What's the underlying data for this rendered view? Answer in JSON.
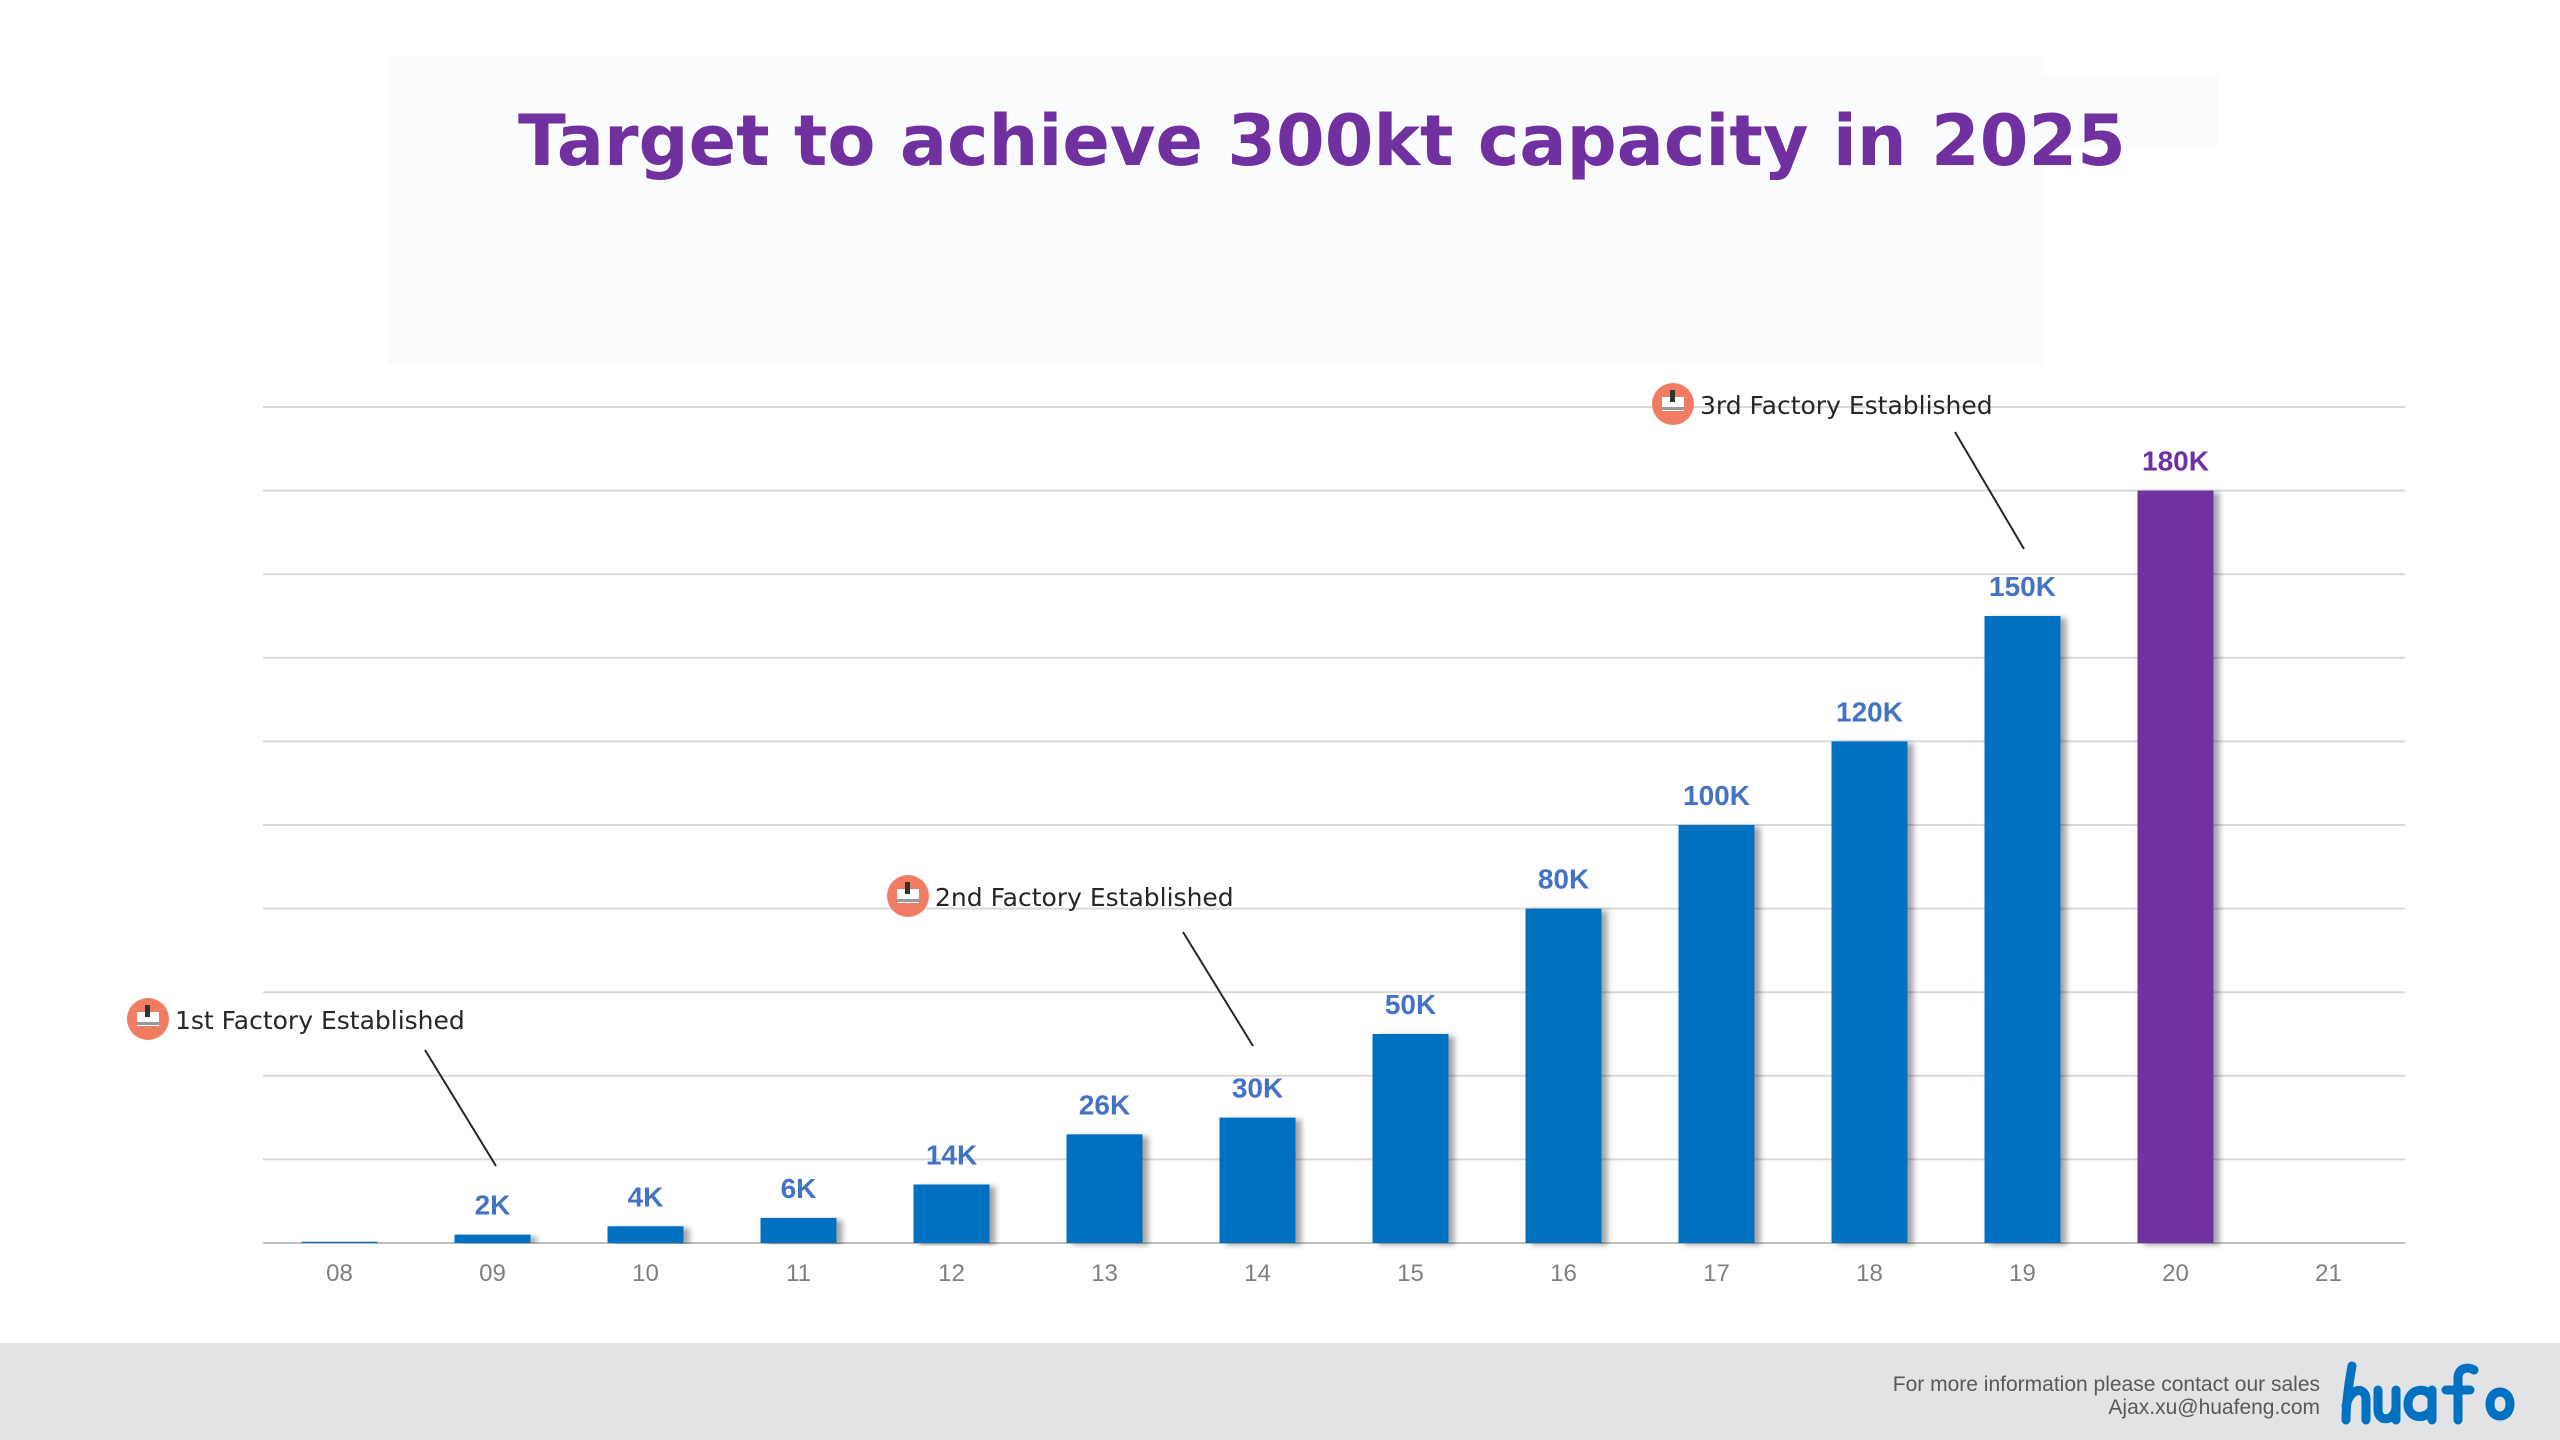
{
  "title": "Target to achieve 300kt capacity in 2025",
  "footer": {
    "contact_line": "For more information please contact our sales",
    "email": "Ajax.xu@huafeng.com",
    "logo_text": "huafon"
  },
  "colors": {
    "title": "#7030a0",
    "bar": "#0070c0",
    "bar_highlight": "#7030a0",
    "label": "#4472c4",
    "label_highlight": "#7030a0",
    "icon": "#f07c63",
    "logo": "#0070c0"
  },
  "chart_data": {
    "type": "bar",
    "categories": [
      "08",
      "09",
      "10",
      "11",
      "12",
      "13",
      "14",
      "15",
      "16",
      "17",
      "18",
      "19",
      "20",
      "21"
    ],
    "values": [
      0.3,
      2,
      4,
      6,
      14,
      26,
      30,
      50,
      80,
      100,
      120,
      150,
      180,
      null
    ],
    "data_labels": [
      "",
      "2K",
      "4K",
      "6K",
      "14K",
      "26K",
      "30K",
      "50K",
      "80K",
      "100K",
      "120K",
      "150K",
      "180K",
      ""
    ],
    "highlight_index": 12,
    "ylim": [
      0,
      200
    ],
    "grid": true,
    "annotations": [
      {
        "text": "1st Factory Established",
        "category": "09",
        "icon": "factory-icon"
      },
      {
        "text": "2nd Factory Established",
        "category": "14",
        "icon": "factory-icon"
      },
      {
        "text": "3rd Factory Established",
        "category": "19",
        "icon": "factory-icon"
      }
    ]
  }
}
